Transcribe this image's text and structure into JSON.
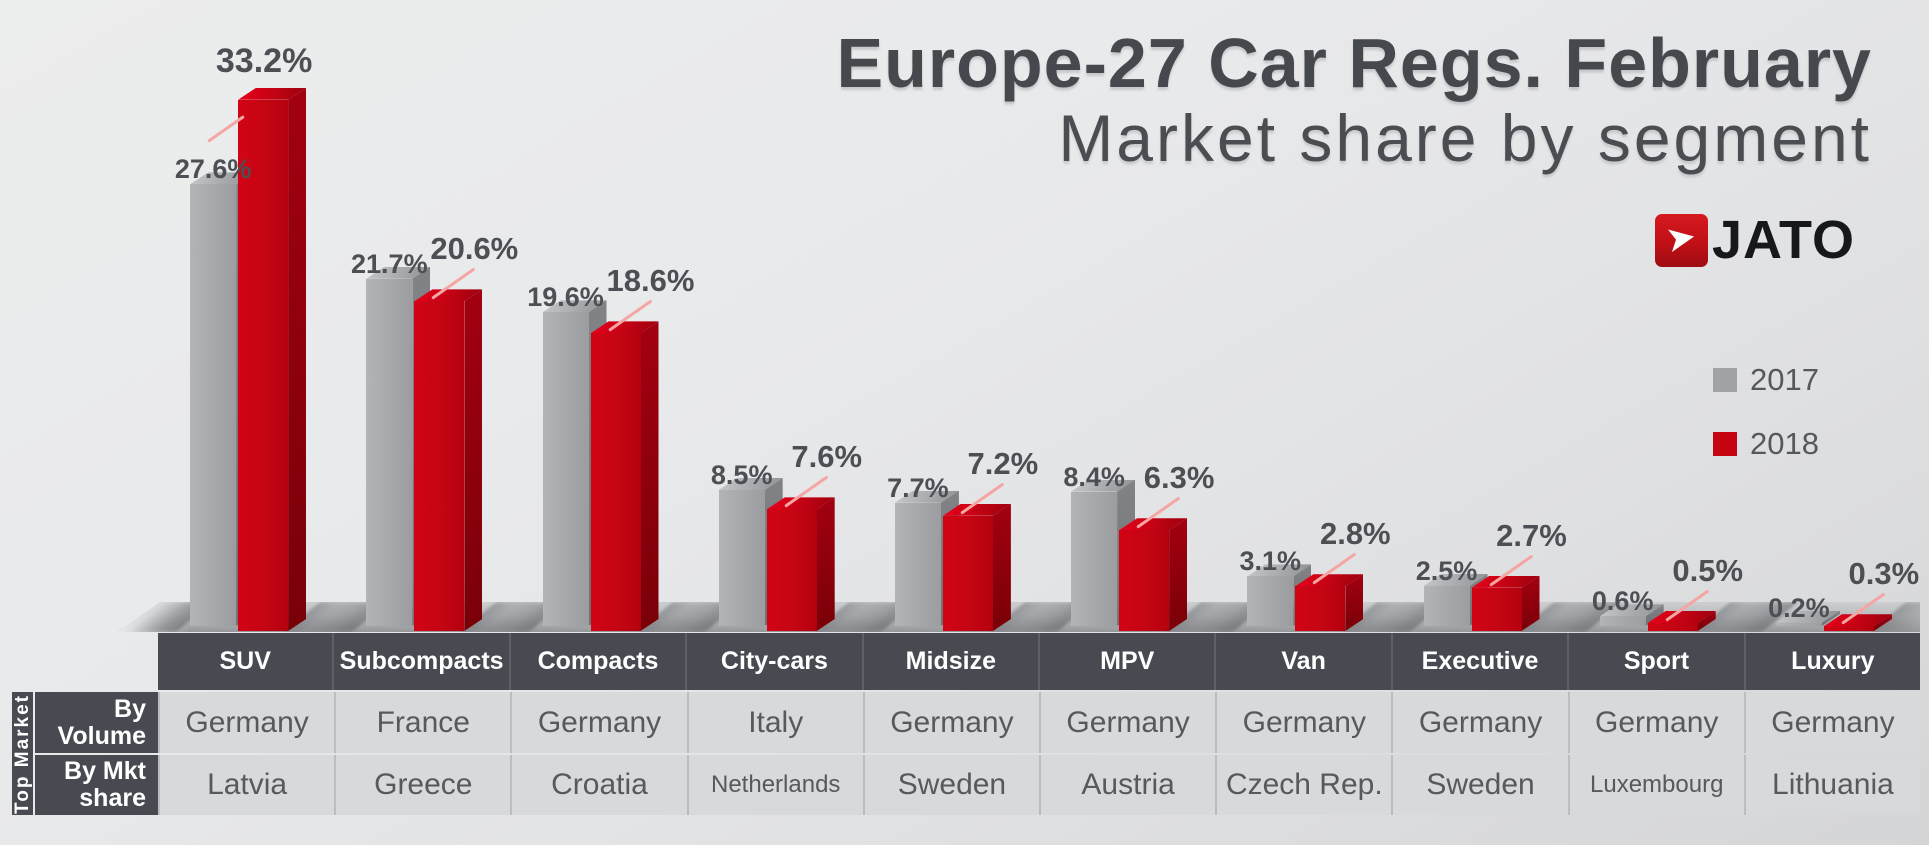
{
  "title": {
    "line1": "Europe-27 Car Regs. February",
    "line2": "Market share by segment"
  },
  "brand": {
    "name": "JATO",
    "logo_color": "#c01016",
    "logo_icon": "arrow-dart-icon"
  },
  "legend": {
    "items": [
      {
        "label": "2017",
        "color": "#a1a3a6"
      },
      {
        "label": "2018",
        "color": "#c70512"
      }
    ]
  },
  "chart_data": {
    "type": "bar",
    "style": "3d-columns",
    "title": "Europe-27 Car Regs. February",
    "subtitle": "Market share by segment",
    "categories": [
      "SUV",
      "Subcompacts",
      "Compacts",
      "City-cars",
      "Midsize",
      "MPV",
      "Van",
      "Executive",
      "Sport",
      "Luxury"
    ],
    "series": [
      {
        "name": "2017",
        "color": "#a4a6a9",
        "values": [
          27.6,
          21.7,
          19.6,
          8.5,
          7.7,
          8.4,
          3.1,
          2.5,
          0.6,
          0.2
        ],
        "labels": [
          "27.6%",
          "21.7%",
          "19.6%",
          "8.5%",
          "7.7%",
          "8.4%",
          "3.1%",
          "2.5%",
          "0.6%",
          "0.2%"
        ]
      },
      {
        "name": "2018",
        "color": "#c70512",
        "values": [
          33.2,
          20.6,
          18.6,
          7.6,
          7.2,
          6.3,
          2.8,
          2.7,
          0.5,
          0.3
        ],
        "labels": [
          "33.2%",
          "20.6%",
          "18.6%",
          "7.6%",
          "7.2%",
          "6.3%",
          "2.8%",
          "2.7%",
          "0.5%",
          "0.3%"
        ]
      }
    ],
    "unit": "%",
    "ylim": [
      0,
      35
    ],
    "grid": false,
    "legend_position": "right",
    "value_labels": true
  },
  "table": {
    "corner_label": "Top Market",
    "columns": [
      "SUV",
      "Subcompacts",
      "Compacts",
      "City-cars",
      "Midsize",
      "MPV",
      "Van",
      "Executive",
      "Sport",
      "Luxury"
    ],
    "rows": [
      {
        "label": "By\nVolume",
        "values": [
          "Germany",
          "France",
          "Germany",
          "Italy",
          "Germany",
          "Germany",
          "Germany",
          "Germany",
          "Germany",
          "Germany"
        ]
      },
      {
        "label": "By Mkt\nshare",
        "values": [
          "Latvia",
          "Greece",
          "Croatia",
          "Netherlands",
          "Sweden",
          "Austria",
          "Czech Rep.",
          "Sweden",
          "Luxembourg",
          "Lithuania"
        ]
      }
    ]
  }
}
